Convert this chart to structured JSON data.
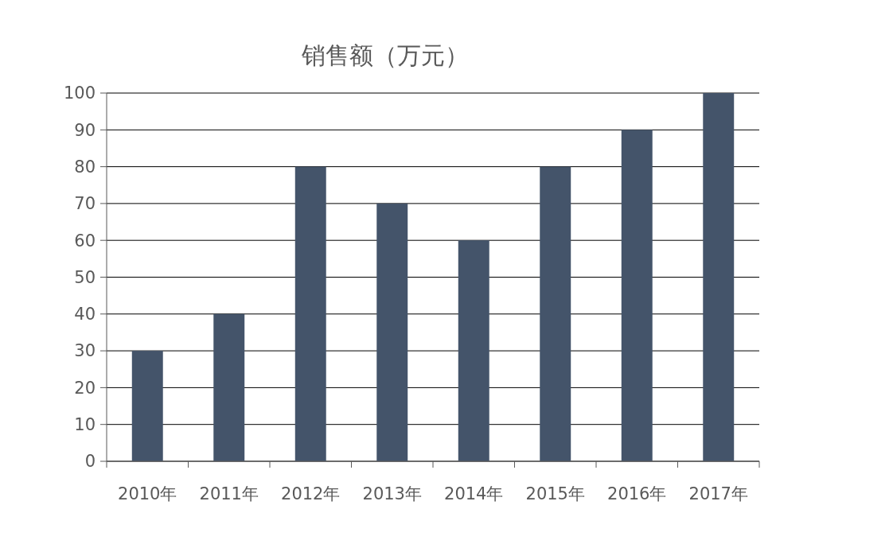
{
  "chart_data": {
    "type": "bar",
    "title": "销售额（万元）",
    "categories": [
      "2010年",
      "2011年",
      "2012年",
      "2013年",
      "2014年",
      "2015年",
      "2016年",
      "2017年"
    ],
    "values": [
      30,
      40,
      80,
      70,
      60,
      80,
      90,
      100
    ],
    "color": "#44546a",
    "ylim": [
      0,
      100
    ],
    "yticks": [
      0,
      10,
      20,
      30,
      40,
      50,
      60,
      70,
      80,
      90,
      100
    ],
    "grid": "y"
  }
}
